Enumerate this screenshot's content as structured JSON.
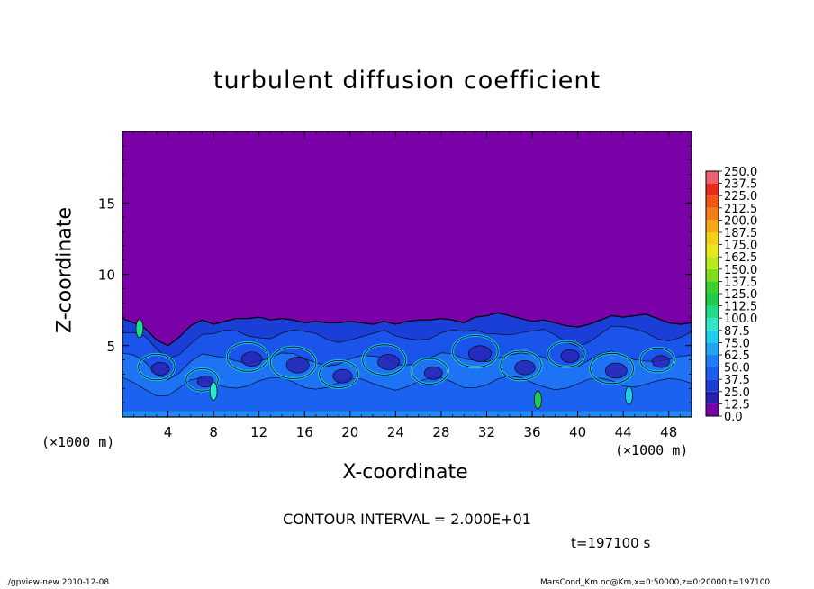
{
  "chart_data": {
    "type": "heatmap",
    "title": "turbulent diffusion coefficient",
    "xlabel": "X-coordinate",
    "ylabel": "Z-coordinate",
    "x_unit_label": "(×1000 m)",
    "xlim": [
      0,
      50
    ],
    "ylim": [
      0,
      20
    ],
    "x_ticks": [
      4,
      8,
      12,
      16,
      20,
      24,
      28,
      32,
      36,
      40,
      44,
      48
    ],
    "y_ticks": [
      5,
      10,
      15
    ],
    "colorbar": {
      "levels": [
        "0.0",
        "12.5",
        "25.0",
        "37.5",
        "50.0",
        "62.5",
        "75.0",
        "87.5",
        "100.0",
        "112.5",
        "125.0",
        "137.5",
        "150.0",
        "162.5",
        "175.0",
        "187.5",
        "200.0",
        "212.5",
        "225.0",
        "237.5",
        "250.0"
      ],
      "colors": [
        "#7a00a8",
        "#2a1fb0",
        "#1a3fd6",
        "#1c5cf0",
        "#1f7ef7",
        "#1ea6f5",
        "#1ad0ea",
        "#2ee8c8",
        "#1fdc8a",
        "#1ccc4a",
        "#3ad22a",
        "#7ede1c",
        "#b9ea1a",
        "#e8e81a",
        "#f5d014",
        "#f5a814",
        "#f57e14",
        "#f25414",
        "#ea2a1a",
        "#f06070"
      ]
    },
    "contour_interval": "CONTOUR INTERVAL = 2.000E+01",
    "time": "t=197100 s",
    "field_summary": "Near-zero values (~0) above about z=7 km; turbulent layer below ~7 km with values mostly 12.5–87.5, local peaks above 100 near x≈2 and x≈36"
  },
  "footer": {
    "left": "./gpview-new   2010-12-08",
    "right": "MarsCond_Km.nc@Km,x=0:50000,z=0:20000,t=197100"
  },
  "colors": {
    "background_field": "#7a00a8",
    "layer_base": "#1a44e0"
  }
}
